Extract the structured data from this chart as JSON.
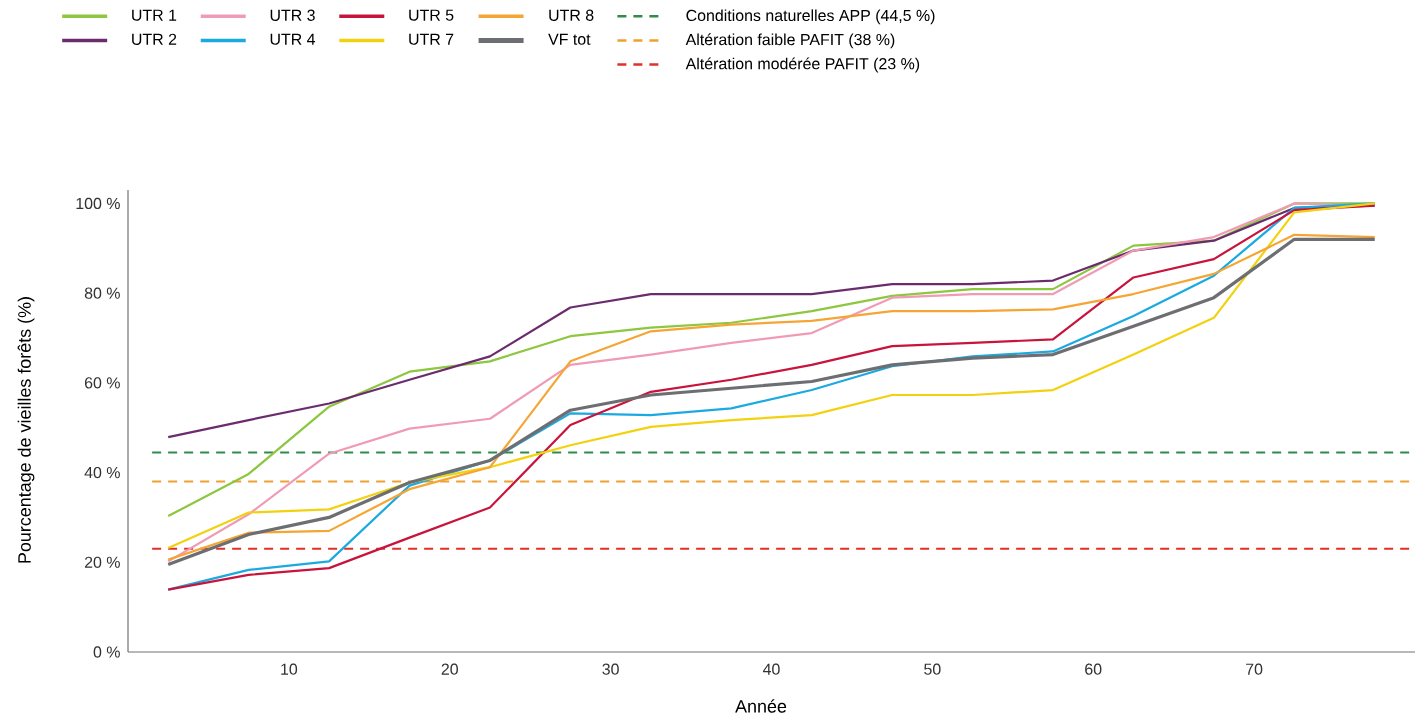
{
  "chart_data": {
    "type": "line",
    "xlabel": "Année",
    "ylabel": "Pourcentage de vieilles forêts (%)",
    "x": [
      2.5,
      7.5,
      12.5,
      17.5,
      22.5,
      27.5,
      32.5,
      37.5,
      42.5,
      47.5,
      52.5,
      57.5,
      62.5,
      67.5,
      72.5,
      77.5
    ],
    "xlim": [
      0,
      80
    ],
    "xticks": [
      10,
      20,
      30,
      40,
      50,
      60,
      70
    ],
    "ylim": [
      0,
      103
    ],
    "yticks": [
      {
        "value": 0,
        "label": "0 %"
      },
      {
        "value": 20,
        "label": "20 %"
      },
      {
        "value": 40,
        "label": "40 %"
      },
      {
        "value": 60,
        "label": "60 %"
      },
      {
        "value": 80,
        "label": "80 %"
      },
      {
        "value": 100,
        "label": "100 %"
      }
    ],
    "legend": "top",
    "series": [
      {
        "name": "UTR 1",
        "color": "#8dc63f",
        "values": [
          30.3,
          39.7,
          54.7,
          62.5,
          64.8,
          70.4,
          72.3,
          73.4,
          76,
          79.4,
          80.9,
          80.9,
          90.6,
          91.7,
          100,
          100
        ]
      },
      {
        "name": "UTR 2",
        "color": "#6b2c6e",
        "values": [
          47.9,
          51.7,
          55.4,
          60.7,
          65.9,
          76.8,
          79.8,
          79.8,
          79.8,
          82,
          82,
          82.8,
          89.5,
          91.7,
          99,
          99.5
        ]
      },
      {
        "name": "UTR 3",
        "color": "#f09bb5",
        "values": [
          20.2,
          30.7,
          44.2,
          49.8,
          52,
          64,
          66.3,
          68.9,
          71.1,
          79,
          79.8,
          79.8,
          89.5,
          92.5,
          100,
          99.5
        ]
      },
      {
        "name": "UTR 4",
        "color": "#1ba9e1",
        "values": [
          13.9,
          18.3,
          20.2,
          37.1,
          42.7,
          53.2,
          52.8,
          54.3,
          58.4,
          63.7,
          65.9,
          67,
          74.9,
          83.9,
          99,
          100
        ]
      },
      {
        "name": "UTR 5",
        "color": "#c8143c",
        "values": [
          13.9,
          17.2,
          18.7,
          25.5,
          32.2,
          50.6,
          58,
          60.7,
          64,
          68.2,
          68.9,
          69.7,
          83.5,
          87.6,
          98.5,
          99.5
        ]
      },
      {
        "name": "UTR 7",
        "color": "#f2d10f",
        "values": [
          23.2,
          31.1,
          31.8,
          37.8,
          41.2,
          46.1,
          50.2,
          51.7,
          52.8,
          57.3,
          57.3,
          58.4,
          66.3,
          74.5,
          98,
          100
        ]
      },
      {
        "name": "UTR 8",
        "color": "#f5a533",
        "values": [
          20.6,
          26.6,
          27,
          36.3,
          41.2,
          64.8,
          71.5,
          73,
          73.8,
          76,
          76,
          76.4,
          79.8,
          84.3,
          93,
          92.5
        ]
      },
      {
        "name": "VF tot",
        "color": "#6d6e71",
        "values": [
          19.5,
          26.2,
          30,
          37.8,
          42.7,
          53.9,
          57.3,
          58.8,
          60.3,
          64,
          65.5,
          66.3,
          72.6,
          79,
          92,
          92
        ]
      }
    ],
    "ref_lines": [
      {
        "axis": "y",
        "value": 44.5,
        "label": "Conditions naturelles APP (44,5 %)",
        "color": "#2e8b4a",
        "line_style": "dashed"
      },
      {
        "axis": "y",
        "value": 38,
        "label": "Altération faible PAFIT (38 %)",
        "color": "#f0a030",
        "line_style": "dashed"
      },
      {
        "axis": "y",
        "value": 23,
        "label": "Altération modérée PAFIT (23 %)",
        "color": "#e0302a",
        "line_style": "dashed"
      }
    ]
  }
}
